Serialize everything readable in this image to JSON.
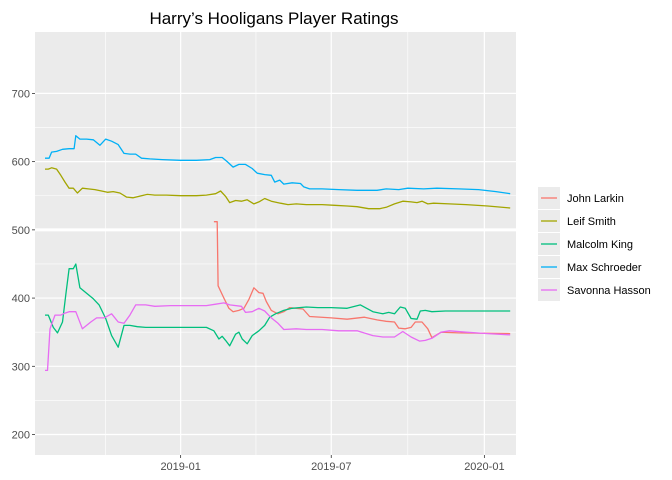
{
  "chart_data": {
    "type": "line",
    "title": "Harry’s Hooligans Player Ratings",
    "xlabel": "",
    "ylabel": "",
    "xlim": [
      "2018-07-10",
      "2020-02-08"
    ],
    "ylim": [
      170,
      790
    ],
    "x_ticks": [
      {
        "date": "2019-01-01",
        "label": "2019-01"
      },
      {
        "date": "2019-07-01",
        "label": "2019-07"
      },
      {
        "date": "2020-01-01",
        "label": "2020-01"
      }
    ],
    "y_ticks": [
      200,
      300,
      400,
      500,
      600,
      700
    ],
    "highlight_hline": 500,
    "grid": true,
    "legend_position": "right",
    "colors": {
      "panel": "#EBEBEB",
      "grid": "#FFFFFF"
    },
    "series": [
      {
        "name": "John Larkin",
        "color": "#F8766D",
        "points": [
          [
            "2019-02-10",
            512
          ],
          [
            "2019-02-14",
            512
          ],
          [
            "2019-02-15",
            418
          ],
          [
            "2019-02-22",
            400
          ],
          [
            "2019-02-28",
            385
          ],
          [
            "2019-03-05",
            380
          ],
          [
            "2019-03-12",
            382
          ],
          [
            "2019-03-18",
            385
          ],
          [
            "2019-03-24",
            398
          ],
          [
            "2019-03-30",
            415
          ],
          [
            "2019-04-05",
            408
          ],
          [
            "2019-04-10",
            407
          ],
          [
            "2019-04-14",
            395
          ],
          [
            "2019-04-20",
            382
          ],
          [
            "2019-04-28",
            377
          ],
          [
            "2019-05-05",
            380
          ],
          [
            "2019-05-12",
            386
          ],
          [
            "2019-05-20",
            385
          ],
          [
            "2019-05-28",
            384
          ],
          [
            "2019-06-05",
            373
          ],
          [
            "2019-07-01",
            371
          ],
          [
            "2019-07-20",
            369
          ],
          [
            "2019-08-10",
            372
          ],
          [
            "2019-08-25",
            368
          ],
          [
            "2019-09-05",
            366
          ],
          [
            "2019-09-15",
            365
          ],
          [
            "2019-09-20",
            356
          ],
          [
            "2019-09-28",
            355
          ],
          [
            "2019-10-05",
            357
          ],
          [
            "2019-10-10",
            365
          ],
          [
            "2019-10-18",
            365
          ],
          [
            "2019-10-25",
            355
          ],
          [
            "2019-10-30",
            342
          ],
          [
            "2019-11-10",
            350
          ],
          [
            "2019-12-01",
            349
          ],
          [
            "2020-02-01",
            348
          ]
        ]
      },
      {
        "name": "Leif Smith",
        "color": "#A3A500",
        "points": [
          [
            "2018-07-22",
            589
          ],
          [
            "2018-07-26",
            589
          ],
          [
            "2018-07-30",
            591
          ],
          [
            "2018-08-05",
            589
          ],
          [
            "2018-08-10",
            580
          ],
          [
            "2018-08-15",
            570
          ],
          [
            "2018-08-20",
            561
          ],
          [
            "2018-08-25",
            561
          ],
          [
            "2018-08-30",
            554
          ],
          [
            "2018-09-05",
            561
          ],
          [
            "2018-09-12",
            560
          ],
          [
            "2018-09-20",
            559
          ],
          [
            "2018-09-28",
            557
          ],
          [
            "2018-10-05",
            555
          ],
          [
            "2018-10-12",
            556
          ],
          [
            "2018-10-20",
            554
          ],
          [
            "2018-10-28",
            548
          ],
          [
            "2018-11-05",
            547
          ],
          [
            "2018-11-15",
            550
          ],
          [
            "2018-11-22",
            552
          ],
          [
            "2018-12-01",
            551
          ],
          [
            "2018-12-15",
            551
          ],
          [
            "2019-01-01",
            550
          ],
          [
            "2019-01-20",
            550
          ],
          [
            "2019-02-01",
            551
          ],
          [
            "2019-02-12",
            553
          ],
          [
            "2019-02-18",
            557
          ],
          [
            "2019-02-24",
            549
          ],
          [
            "2019-03-01",
            540
          ],
          [
            "2019-03-08",
            543
          ],
          [
            "2019-03-15",
            542
          ],
          [
            "2019-03-22",
            544
          ],
          [
            "2019-03-30",
            538
          ],
          [
            "2019-04-05",
            541
          ],
          [
            "2019-04-12",
            546
          ],
          [
            "2019-04-20",
            542
          ],
          [
            "2019-05-01",
            539
          ],
          [
            "2019-05-10",
            537
          ],
          [
            "2019-05-20",
            538
          ],
          [
            "2019-06-01",
            537
          ],
          [
            "2019-06-20",
            537
          ],
          [
            "2019-07-05",
            536
          ],
          [
            "2019-07-20",
            535
          ],
          [
            "2019-08-01",
            534
          ],
          [
            "2019-08-15",
            531
          ],
          [
            "2019-08-28",
            531
          ],
          [
            "2019-09-05",
            533
          ],
          [
            "2019-09-15",
            538
          ],
          [
            "2019-09-25",
            542
          ],
          [
            "2019-10-05",
            541
          ],
          [
            "2019-10-12",
            540
          ],
          [
            "2019-10-18",
            542
          ],
          [
            "2019-10-25",
            538
          ],
          [
            "2019-11-01",
            539
          ],
          [
            "2019-11-20",
            538
          ],
          [
            "2019-12-10",
            537
          ],
          [
            "2020-01-05",
            535
          ],
          [
            "2020-02-01",
            532
          ]
        ]
      },
      {
        "name": "Malcolm King",
        "color": "#00BF7D",
        "points": [
          [
            "2018-07-22",
            375
          ],
          [
            "2018-07-26",
            375
          ],
          [
            "2018-08-01",
            357
          ],
          [
            "2018-08-06",
            349
          ],
          [
            "2018-08-12",
            365
          ],
          [
            "2018-08-16",
            405
          ],
          [
            "2018-08-20",
            443
          ],
          [
            "2018-08-25",
            443
          ],
          [
            "2018-08-28",
            450
          ],
          [
            "2018-09-02",
            415
          ],
          [
            "2018-09-10",
            407
          ],
          [
            "2018-09-18",
            399
          ],
          [
            "2018-09-25",
            390
          ],
          [
            "2018-10-03",
            370
          ],
          [
            "2018-10-10",
            345
          ],
          [
            "2018-10-18",
            328
          ],
          [
            "2018-10-25",
            360
          ],
          [
            "2018-11-01",
            360
          ],
          [
            "2018-11-10",
            358
          ],
          [
            "2018-11-20",
            357
          ],
          [
            "2018-12-01",
            357
          ],
          [
            "2018-12-15",
            357
          ],
          [
            "2019-01-01",
            357
          ],
          [
            "2019-01-20",
            357
          ],
          [
            "2019-02-01",
            357
          ],
          [
            "2019-02-10",
            352
          ],
          [
            "2019-02-16",
            340
          ],
          [
            "2019-02-20",
            344
          ],
          [
            "2019-02-24",
            338
          ],
          [
            "2019-03-01",
            330
          ],
          [
            "2019-03-08",
            347
          ],
          [
            "2019-03-12",
            350
          ],
          [
            "2019-03-16",
            340
          ],
          [
            "2019-03-22",
            333
          ],
          [
            "2019-03-28",
            345
          ],
          [
            "2019-04-05",
            352
          ],
          [
            "2019-04-12",
            360
          ],
          [
            "2019-04-18",
            372
          ],
          [
            "2019-04-25",
            377
          ],
          [
            "2019-05-05",
            382
          ],
          [
            "2019-05-15",
            385
          ],
          [
            "2019-06-01",
            387
          ],
          [
            "2019-06-15",
            386
          ],
          [
            "2019-07-01",
            386
          ],
          [
            "2019-07-20",
            385
          ],
          [
            "2019-08-05",
            390
          ],
          [
            "2019-08-20",
            380
          ],
          [
            "2019-09-01",
            377
          ],
          [
            "2019-09-08",
            379
          ],
          [
            "2019-09-15",
            377
          ],
          [
            "2019-09-22",
            387
          ],
          [
            "2019-09-28",
            385
          ],
          [
            "2019-10-05",
            370
          ],
          [
            "2019-10-12",
            369
          ],
          [
            "2019-10-16",
            381
          ],
          [
            "2019-10-22",
            382
          ],
          [
            "2019-10-30",
            380
          ],
          [
            "2019-11-15",
            381
          ],
          [
            "2019-12-15",
            381
          ],
          [
            "2020-02-01",
            381
          ]
        ]
      },
      {
        "name": "Max Schroeder",
        "color": "#00B0F6",
        "points": [
          [
            "2018-07-22",
            605
          ],
          [
            "2018-07-27",
            605
          ],
          [
            "2018-07-30",
            614
          ],
          [
            "2018-08-05",
            615
          ],
          [
            "2018-08-12",
            618
          ],
          [
            "2018-08-20",
            619
          ],
          [
            "2018-08-26",
            619
          ],
          [
            "2018-08-28",
            638
          ],
          [
            "2018-09-02",
            633
          ],
          [
            "2018-09-10",
            633
          ],
          [
            "2018-09-18",
            632
          ],
          [
            "2018-09-26",
            624
          ],
          [
            "2018-10-03",
            633
          ],
          [
            "2018-10-10",
            630
          ],
          [
            "2018-10-18",
            625
          ],
          [
            "2018-10-25",
            612
          ],
          [
            "2018-11-01",
            611
          ],
          [
            "2018-11-08",
            611
          ],
          [
            "2018-11-15",
            605
          ],
          [
            "2018-11-25",
            604
          ],
          [
            "2018-12-10",
            603
          ],
          [
            "2019-01-01",
            602
          ],
          [
            "2019-01-20",
            602
          ],
          [
            "2019-02-05",
            603
          ],
          [
            "2019-02-12",
            606
          ],
          [
            "2019-02-20",
            606
          ],
          [
            "2019-02-26",
            600
          ],
          [
            "2019-03-05",
            592
          ],
          [
            "2019-03-12",
            596
          ],
          [
            "2019-03-20",
            596
          ],
          [
            "2019-03-28",
            590
          ],
          [
            "2019-04-03",
            583
          ],
          [
            "2019-04-12",
            581
          ],
          [
            "2019-04-20",
            580
          ],
          [
            "2019-04-24",
            570
          ],
          [
            "2019-04-30",
            573
          ],
          [
            "2019-05-05",
            567
          ],
          [
            "2019-05-15",
            569
          ],
          [
            "2019-05-25",
            568
          ],
          [
            "2019-05-29",
            563
          ],
          [
            "2019-06-05",
            560
          ],
          [
            "2019-06-20",
            560
          ],
          [
            "2019-07-10",
            559
          ],
          [
            "2019-08-01",
            558
          ],
          [
            "2019-08-25",
            558
          ],
          [
            "2019-09-05",
            560
          ],
          [
            "2019-09-20",
            559
          ],
          [
            "2019-10-01",
            561
          ],
          [
            "2019-10-20",
            560
          ],
          [
            "2019-11-05",
            561
          ],
          [
            "2019-12-01",
            560
          ],
          [
            "2019-12-25",
            559
          ],
          [
            "2020-01-15",
            556
          ],
          [
            "2020-02-01",
            553
          ]
        ]
      },
      {
        "name": "Savonna Hasson",
        "color": "#E76BF3",
        "points": [
          [
            "2018-07-22",
            294
          ],
          [
            "2018-07-25",
            294
          ],
          [
            "2018-07-28",
            355
          ],
          [
            "2018-08-03",
            375
          ],
          [
            "2018-08-10",
            375
          ],
          [
            "2018-08-15",
            378
          ],
          [
            "2018-08-20",
            380
          ],
          [
            "2018-08-28",
            380
          ],
          [
            "2018-09-05",
            355
          ],
          [
            "2018-09-15",
            365
          ],
          [
            "2018-09-22",
            371
          ],
          [
            "2018-10-01",
            371
          ],
          [
            "2018-10-10",
            377
          ],
          [
            "2018-10-18",
            365
          ],
          [
            "2018-10-25",
            363
          ],
          [
            "2018-11-01",
            375
          ],
          [
            "2018-11-08",
            390
          ],
          [
            "2018-11-20",
            390
          ],
          [
            "2018-12-01",
            388
          ],
          [
            "2018-12-20",
            389
          ],
          [
            "2019-01-10",
            389
          ],
          [
            "2019-02-01",
            389
          ],
          [
            "2019-02-12",
            391
          ],
          [
            "2019-02-22",
            393
          ],
          [
            "2019-03-01",
            390
          ],
          [
            "2019-03-15",
            388
          ],
          [
            "2019-03-20",
            379
          ],
          [
            "2019-03-28",
            380
          ],
          [
            "2019-04-05",
            385
          ],
          [
            "2019-04-12",
            381
          ],
          [
            "2019-04-20",
            371
          ],
          [
            "2019-04-28",
            363
          ],
          [
            "2019-05-05",
            354
          ],
          [
            "2019-05-20",
            355
          ],
          [
            "2019-06-01",
            354
          ],
          [
            "2019-06-20",
            354
          ],
          [
            "2019-07-10",
            352
          ],
          [
            "2019-08-01",
            352
          ],
          [
            "2019-08-20",
            345
          ],
          [
            "2019-09-01",
            343
          ],
          [
            "2019-09-15",
            343
          ],
          [
            "2019-09-25",
            351
          ],
          [
            "2019-10-05",
            343
          ],
          [
            "2019-10-15",
            337
          ],
          [
            "2019-10-22",
            338
          ],
          [
            "2019-10-30",
            341
          ],
          [
            "2019-11-10",
            350
          ],
          [
            "2019-11-20",
            352
          ],
          [
            "2019-12-10",
            350
          ],
          [
            "2020-01-05",
            348
          ],
          [
            "2020-02-01",
            346
          ]
        ]
      }
    ]
  }
}
